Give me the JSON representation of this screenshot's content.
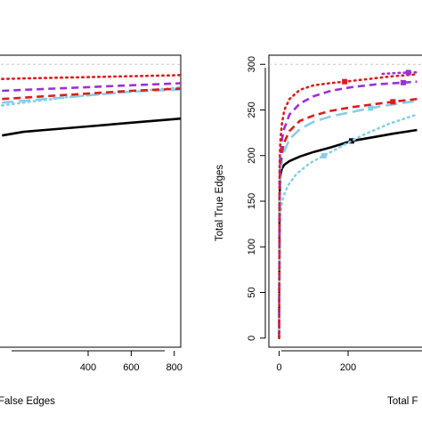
{
  "chart_data": [
    {
      "type": "line",
      "panel": "left (cropped at image edge)",
      "xlabel": "False Edges",
      "ylabel": "",
      "xlim": [
        -30,
        830
      ],
      "ylim": [
        -10,
        310
      ],
      "x_ticks": [
        400,
        600,
        800
      ],
      "y_ticks": [],
      "reference_line": {
        "y": 300,
        "style": "dashed",
        "color": "#c8c8c8"
      },
      "grid": false,
      "series": [
        {
          "color": "#000000",
          "dash": "solid",
          "width": 2.6,
          "markers": [],
          "points": [
            [
              0,
              222
            ],
            [
              100,
              226
            ],
            [
              200,
              228
            ],
            [
              300,
              230
            ],
            [
              400,
              232
            ],
            [
              500,
              234
            ],
            [
              600,
              236
            ],
            [
              700,
              238
            ],
            [
              800,
              240
            ],
            [
              830,
              240.5
            ]
          ]
        },
        {
          "color": "#87ceeb",
          "dash": "dotted",
          "width": 2.6,
          "markers": [],
          "points": [
            [
              0,
              255
            ],
            [
              100,
              258
            ],
            [
              200,
              261
            ],
            [
              300,
              264
            ],
            [
              400,
              266
            ],
            [
              500,
              268
            ],
            [
              600,
              270
            ],
            [
              700,
              272
            ],
            [
              800,
              274
            ],
            [
              830,
              275
            ]
          ]
        },
        {
          "color": "#87ceeb",
          "dash": "longdash",
          "width": 2.6,
          "markers": [],
          "points": [
            [
              0,
              258
            ],
            [
              100,
              260
            ],
            [
              200,
              262
            ],
            [
              300,
              264
            ],
            [
              400,
              266
            ],
            [
              500,
              268
            ],
            [
              600,
              270
            ],
            [
              700,
              271
            ],
            [
              800,
              272
            ],
            [
              830,
              272.5
            ]
          ]
        },
        {
          "color": "#dd1c1c",
          "dash": "dashed",
          "width": 2.6,
          "markers": [],
          "points": [
            [
              0,
              262
            ],
            [
              100,
              263.5
            ],
            [
              200,
              265
            ],
            [
              300,
              266.5
            ],
            [
              400,
              268
            ],
            [
              500,
              269.5
            ],
            [
              600,
              271
            ],
            [
              700,
              272
            ],
            [
              800,
              273
            ],
            [
              830,
              273.3
            ]
          ]
        },
        {
          "color": "#9b30d9",
          "dash": "dashed",
          "width": 2.6,
          "markers": [],
          "points": [
            [
              0,
              271
            ],
            [
              100,
              272
            ],
            [
              200,
              273
            ],
            [
              300,
              274
            ],
            [
              400,
              275
            ],
            [
              500,
              276
            ],
            [
              600,
              277
            ],
            [
              700,
              278
            ],
            [
              800,
              279
            ],
            [
              830,
              279.3
            ]
          ]
        },
        {
          "color": "#dd1c1c",
          "dash": "dotted",
          "width": 2.6,
          "markers": [],
          "points": [
            [
              0,
              284
            ],
            [
              100,
              284.5
            ],
            [
              200,
              285
            ],
            [
              300,
              285.5
            ],
            [
              400,
              286
            ],
            [
              500,
              286.5
            ],
            [
              600,
              287
            ],
            [
              700,
              287.5
            ],
            [
              800,
              288
            ],
            [
              830,
              288.2
            ]
          ]
        }
      ]
    },
    {
      "type": "line",
      "panel": "right (cropped at image edge)",
      "xlabel": "Total F",
      "ylabel": "Total True Edges",
      "xlim": [
        -30,
        430
      ],
      "ylim": [
        -10,
        310
      ],
      "x_ticks": [
        0,
        200
      ],
      "y_ticks": [
        0,
        50,
        100,
        150,
        200,
        250,
        300
      ],
      "reference_line": {
        "y": 300,
        "style": "dashed",
        "color": "#c8c8c8"
      },
      "grid": false,
      "series": [
        {
          "color": "#000000",
          "dash": "solid",
          "width": 2.6,
          "markers": [
            [
              210,
              216
            ]
          ],
          "points": [
            [
              0,
              0
            ],
            [
              0.5,
              80
            ],
            [
              1,
              140
            ],
            [
              2,
              170
            ],
            [
              4,
              180
            ],
            [
              8,
              186
            ],
            [
              15,
              190
            ],
            [
              30,
              194
            ],
            [
              60,
              199
            ],
            [
              100,
              204
            ],
            [
              150,
              209
            ],
            [
              210,
              216
            ],
            [
              270,
              220
            ],
            [
              330,
              224
            ],
            [
              400,
              228
            ]
          ]
        },
        {
          "color": "#87ceeb",
          "dash": "dotted",
          "width": 2.6,
          "markers": [
            [
              130,
              200
            ]
          ],
          "points": [
            [
              0,
              0
            ],
            [
              0.5,
              60
            ],
            [
              1,
              100
            ],
            [
              3,
              130
            ],
            [
              6,
              145
            ],
            [
              12,
              155
            ],
            [
              25,
              167
            ],
            [
              50,
              180
            ],
            [
              90,
              192
            ],
            [
              130,
              200
            ],
            [
              180,
              210
            ],
            [
              240,
              222
            ],
            [
              320,
              235
            ],
            [
              400,
              245
            ]
          ]
        },
        {
          "color": "#87ceeb",
          "dash": "longdash",
          "width": 2.6,
          "markers": [
            [
              265,
              252
            ]
          ],
          "points": [
            [
              0,
              0
            ],
            [
              0.5,
              80
            ],
            [
              1,
              150
            ],
            [
              3,
              180
            ],
            [
              8,
              195
            ],
            [
              15,
              205
            ],
            [
              30,
              218
            ],
            [
              60,
              229
            ],
            [
              100,
              237
            ],
            [
              150,
              243
            ],
            [
              200,
              247
            ],
            [
              265,
              252
            ],
            [
              330,
              256
            ],
            [
              400,
              260
            ]
          ]
        },
        {
          "color": "#dd1c1c",
          "dash": "dashed",
          "width": 2.6,
          "markers": [
            [
              330,
              259
            ]
          ],
          "points": [
            [
              0,
              0
            ],
            [
              0.5,
              90
            ],
            [
              1,
              155
            ],
            [
              3,
              190
            ],
            [
              8,
              204
            ],
            [
              15,
              215
            ],
            [
              30,
              227
            ],
            [
              60,
              238
            ],
            [
              100,
              244
            ],
            [
              150,
              249
            ],
            [
              210,
              253
            ],
            [
              270,
              256
            ],
            [
              330,
              259
            ],
            [
              400,
              262
            ]
          ]
        },
        {
          "color": "#9b30d9",
          "dash": "dashed",
          "width": 2.6,
          "markers": [
            [
              360,
              280
            ]
          ],
          "points": [
            [
              0,
              0
            ],
            [
              1,
              170
            ],
            [
              3,
              200
            ],
            [
              8,
              218
            ],
            [
              15,
              230
            ],
            [
              30,
              245
            ],
            [
              60,
              257
            ],
            [
              100,
              265
            ],
            [
              150,
              271
            ],
            [
              210,
              275
            ],
            [
              280,
              278
            ],
            [
              360,
              280
            ],
            [
              400,
              281
            ]
          ]
        },
        {
          "color": "#dd1c1c",
          "dash": "dotted",
          "width": 2.6,
          "markers": [
            [
              190,
              281
            ]
          ],
          "points": [
            [
              0,
              0
            ],
            [
              1,
              185
            ],
            [
              3,
              215
            ],
            [
              8,
              235
            ],
            [
              15,
              250
            ],
            [
              30,
              262
            ],
            [
              60,
              272
            ],
            [
              100,
              277
            ],
            [
              150,
              279.5
            ],
            [
              190,
              281
            ],
            [
              260,
              284
            ],
            [
              330,
              287
            ],
            [
              400,
              289
            ]
          ]
        },
        {
          "color": "#9b30d9",
          "dash": "dotted",
          "width": 2.6,
          "markers": [
            [
              375,
              291
            ]
          ],
          "points": [
            [
              300,
              289.5
            ],
            [
              340,
              290.5
            ],
            [
              375,
              291
            ],
            [
              400,
              291.3
            ]
          ]
        }
      ]
    }
  ],
  "text": {
    "left_xlabel": "False Edges",
    "right_xlabel": "Total F",
    "right_ylabel": "Total True Edges",
    "left_xticks": [
      "400",
      "600",
      "800"
    ],
    "right_xticks": [
      "0",
      "200"
    ],
    "right_yticks": [
      "0",
      "50",
      "100",
      "150",
      "200",
      "250",
      "300"
    ]
  }
}
